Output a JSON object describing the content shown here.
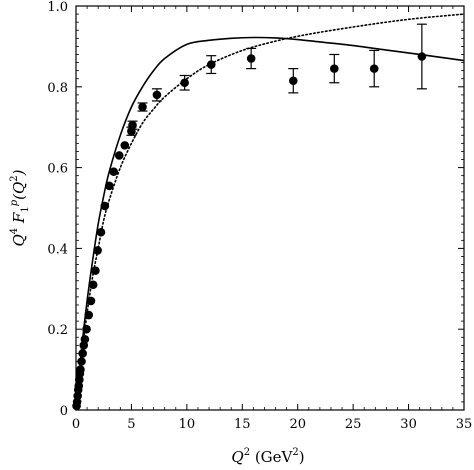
{
  "chart_data": {
    "type": "scatter",
    "xlabel": {
      "var": "Q",
      "sup": "2",
      "unit_open": " (GeV",
      "unit_sup": "2",
      "unit_close": ")"
    },
    "ylabel": {
      "pre": "Q",
      "pre_sup": "4",
      "mid": " F",
      "mid_sub": "1",
      "mid_sup": "p",
      "post_open": "(Q",
      "post_sup": "2",
      "post_close": ")"
    },
    "xlim": [
      0,
      35
    ],
    "ylim": [
      0,
      1.0
    ],
    "xticks": [
      0,
      5,
      10,
      15,
      20,
      25,
      30,
      35
    ],
    "yticks": [
      0,
      0.2,
      0.4,
      0.6,
      0.8,
      1.0
    ],
    "xtick_labels": [
      "0",
      "5",
      "10",
      "15",
      "20",
      "25",
      "30",
      "35"
    ],
    "ytick_labels": [
      "0",
      "0.2",
      "0.4",
      "0.6",
      "0.8",
      "1.0"
    ],
    "grid": false,
    "points": [
      {
        "x": 0.05,
        "y": 0.01,
        "err": 0
      },
      {
        "x": 0.1,
        "y": 0.02,
        "err": 0
      },
      {
        "x": 0.15,
        "y": 0.035,
        "err": 0
      },
      {
        "x": 0.2,
        "y": 0.05,
        "err": 0
      },
      {
        "x": 0.25,
        "y": 0.06,
        "err": 0
      },
      {
        "x": 0.3,
        "y": 0.075,
        "err": 0
      },
      {
        "x": 0.35,
        "y": 0.09,
        "err": 0
      },
      {
        "x": 0.4,
        "y": 0.1,
        "err": 0
      },
      {
        "x": 0.5,
        "y": 0.12,
        "err": 0
      },
      {
        "x": 0.6,
        "y": 0.14,
        "err": 0
      },
      {
        "x": 0.7,
        "y": 0.16,
        "err": 0
      },
      {
        "x": 0.8,
        "y": 0.175,
        "err": 0
      },
      {
        "x": 0.95,
        "y": 0.2,
        "err": 0
      },
      {
        "x": 1.15,
        "y": 0.235,
        "err": 0
      },
      {
        "x": 1.35,
        "y": 0.27,
        "err": 0
      },
      {
        "x": 1.55,
        "y": 0.31,
        "err": 0
      },
      {
        "x": 1.75,
        "y": 0.345,
        "err": 0
      },
      {
        "x": 1.95,
        "y": 0.395,
        "err": 0
      },
      {
        "x": 2.25,
        "y": 0.44,
        "err": 0
      },
      {
        "x": 2.6,
        "y": 0.505,
        "err": 0
      },
      {
        "x": 3.0,
        "y": 0.555,
        "err": 0
      },
      {
        "x": 3.4,
        "y": 0.59,
        "err": 0
      },
      {
        "x": 3.9,
        "y": 0.63,
        "err": 0
      },
      {
        "x": 4.4,
        "y": 0.655,
        "err": 0
      },
      {
        "x": 5.0,
        "y": 0.69,
        "err": 0.01
      },
      {
        "x": 5.1,
        "y": 0.705,
        "err": 0.01
      },
      {
        "x": 6.0,
        "y": 0.75,
        "err": 0.01
      },
      {
        "x": 7.3,
        "y": 0.78,
        "err": 0.015
      },
      {
        "x": 9.8,
        "y": 0.81,
        "err": 0.018
      },
      {
        "x": 12.2,
        "y": 0.855,
        "err": 0.022
      },
      {
        "x": 15.8,
        "y": 0.87,
        "err": 0.025
      },
      {
        "x": 19.6,
        "y": 0.815,
        "err": 0.03
      },
      {
        "x": 23.3,
        "y": 0.845,
        "err": 0.035
      },
      {
        "x": 26.9,
        "y": 0.845,
        "err": 0.045
      },
      {
        "x": 31.2,
        "y": 0.875,
        "err": 0.08
      }
    ],
    "curves": [
      {
        "style": "solid",
        "x": [
          0,
          0.5,
          1,
          1.5,
          2,
          2.5,
          3,
          4,
          5,
          6,
          7,
          8,
          10,
          12,
          14,
          16,
          18,
          20,
          22,
          25,
          28,
          31,
          35
        ],
        "y": [
          0,
          0.15,
          0.27,
          0.37,
          0.46,
          0.53,
          0.59,
          0.68,
          0.75,
          0.8,
          0.84,
          0.87,
          0.905,
          0.915,
          0.92,
          0.922,
          0.921,
          0.917,
          0.911,
          0.902,
          0.891,
          0.88,
          0.865
        ]
      },
      {
        "style": "dotted",
        "x": [
          0,
          0.5,
          1,
          1.5,
          2,
          2.5,
          3,
          4,
          5,
          6,
          7,
          8,
          10,
          12,
          15,
          18,
          20,
          22,
          25,
          28,
          31,
          35
        ],
        "y": [
          0,
          0.13,
          0.24,
          0.33,
          0.4,
          0.47,
          0.52,
          0.6,
          0.66,
          0.71,
          0.745,
          0.775,
          0.82,
          0.855,
          0.89,
          0.913,
          0.925,
          0.935,
          0.948,
          0.96,
          0.97,
          0.98
        ]
      }
    ]
  }
}
